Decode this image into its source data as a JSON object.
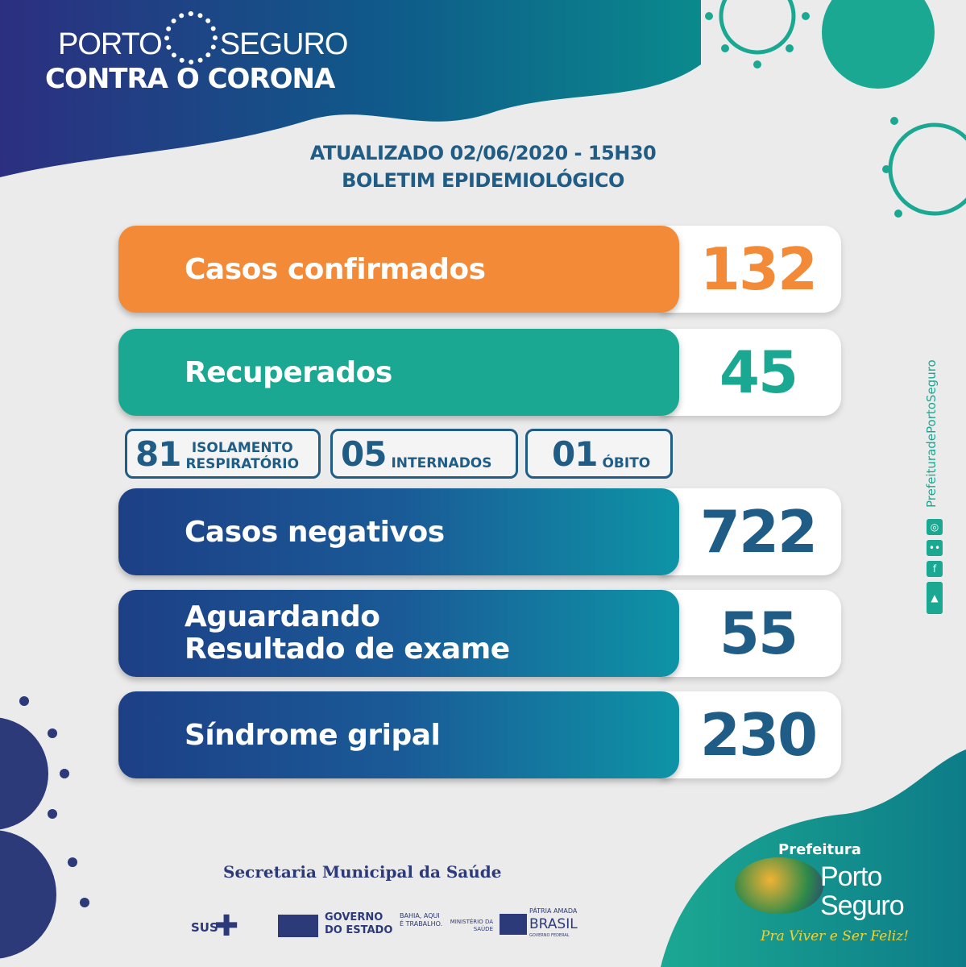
{
  "header": {
    "brand_left": "PORTO",
    "brand_right": "SEGURO",
    "tagline": "CONTRA O CORONA"
  },
  "bulletin": {
    "updated": "ATUALIZADO 02/06/2020 - 15H30",
    "title": "BOLETIM EPIDEMIOLÓGICO"
  },
  "stats": [
    {
      "label": "Casos confirmados",
      "value": "132",
      "color": "#f28a37"
    },
    {
      "label": "Recuperados",
      "value": "45",
      "color": "#1ba892"
    },
    {
      "label": "Casos negativos",
      "value": "722",
      "color": "#1f5d86"
    },
    {
      "label_line1": "Aguardando",
      "label_line2": "Resultado de exame",
      "value": "55",
      "color": "#1f5d86"
    },
    {
      "label": "Síndrome gripal",
      "value": "230",
      "color": "#1f5d86"
    }
  ],
  "breakdown": [
    {
      "value": "81",
      "label_line1": "ISOLAMENTO",
      "label_line2": "RESPIRATÓRIO"
    },
    {
      "value": "05",
      "label": "INTERNADOS"
    },
    {
      "value": "01",
      "label": "ÓBITO"
    }
  ],
  "social": {
    "handle": "PrefeituradePortoSeguro",
    "icons": [
      "instagram-icon",
      "flickr-icon",
      "facebook-icon",
      "youtube-icon"
    ]
  },
  "footer": {
    "secretaria": "Secretaria Municipal da Saúde",
    "sus": "SUS",
    "gov_line1": "GOVERNO",
    "gov_line2": "DO ESTADO",
    "bahia": "BAHIA, AQUI É TRABALHO.",
    "ministerio": "MINISTÉRIO DA SAÚDE",
    "patria": "PÁTRIA AMADA",
    "brasil": "BRASIL",
    "gov_fed": "GOVERNO FEDERAL"
  },
  "prefeitura": {
    "line1": "Prefeitura",
    "line2": "Porto",
    "line3": "Seguro",
    "slogan": "Pra Viver e Ser Feliz!"
  }
}
